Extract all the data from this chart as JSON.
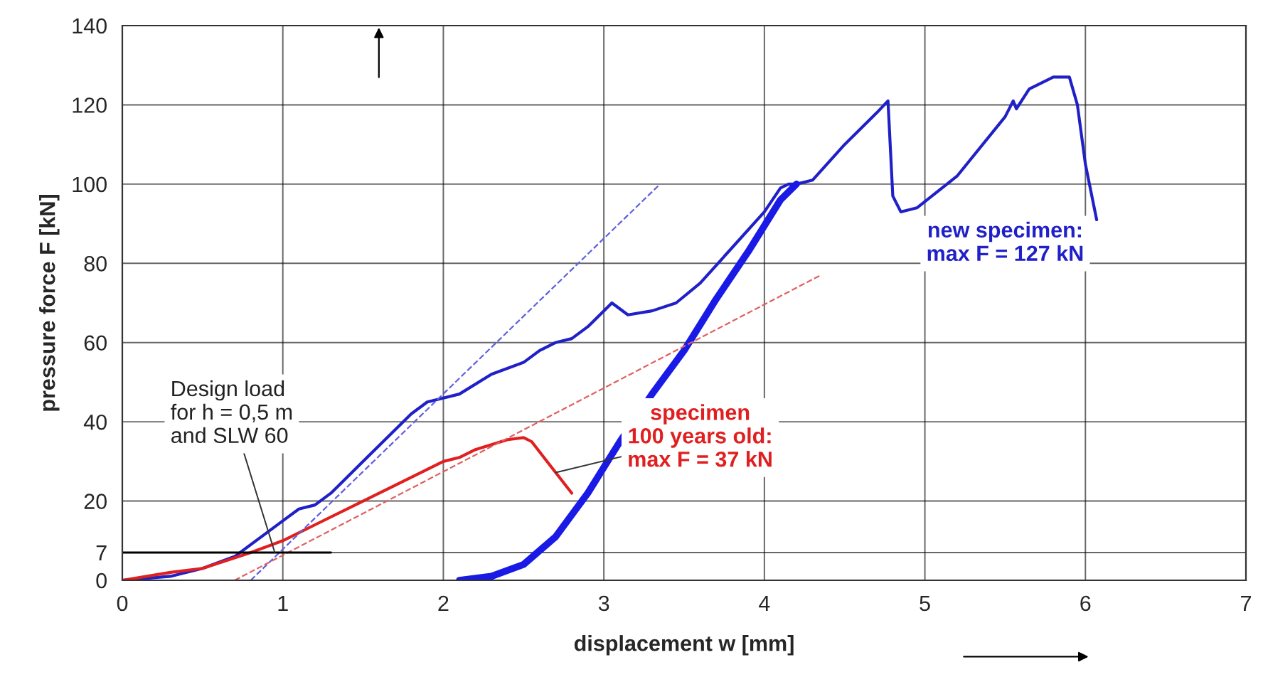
{
  "chart_data": {
    "type": "line",
    "xlabel": "displacement w [mm]",
    "ylabel": "pressure force F [kN]",
    "xlim": [
      0,
      7
    ],
    "xticks": [
      0,
      1,
      2,
      3,
      4,
      5,
      6,
      7
    ],
    "ylim": [
      0,
      140
    ],
    "yticks": [
      0,
      7,
      20,
      40,
      60,
      80,
      100,
      120,
      140
    ],
    "grid": true,
    "line_style": "solid",
    "series": [
      {
        "color": "#2020c8",
        "x": [
          0,
          0.3,
          0.5,
          0.7,
          0.9,
          1.0,
          1.1,
          1.2,
          1.3,
          1.5,
          1.7,
          1.8,
          1.9,
          2.0,
          2.1,
          2.3,
          2.5,
          2.6,
          2.7,
          2.8,
          2.9,
          3.0,
          3.05,
          3.15,
          3.3,
          3.45,
          3.6,
          3.8,
          4.0,
          4.1,
          4.15,
          4.2,
          4.3,
          4.5,
          4.7,
          4.77,
          4.8,
          4.85,
          4.95,
          5.2,
          5.5,
          5.55,
          5.57,
          5.65,
          5.8,
          5.9,
          5.95,
          6.0,
          6.07
        ],
        "values": [
          0,
          1,
          3,
          6,
          12,
          15,
          18,
          19,
          22,
          30,
          38,
          42,
          45,
          46,
          47,
          52,
          55,
          58,
          60,
          61,
          64,
          68,
          70,
          67,
          68,
          70,
          75,
          84,
          93,
          99,
          100,
          100,
          101,
          110,
          118,
          121,
          97,
          93,
          94,
          102,
          117,
          121,
          119,
          124,
          127,
          127,
          120,
          105,
          91
        ]
      },
      {
        "color": "#1a1ae6",
        "x": [
          2.1,
          2.3,
          2.5,
          2.7,
          2.9,
          3.1,
          3.3,
          3.5,
          3.7,
          3.9,
          4.1,
          4.2
        ],
        "values": [
          0,
          1,
          4,
          11,
          22,
          35,
          47,
          58,
          71,
          83,
          96,
          100
        ]
      },
      {
        "color": "#e02020",
        "x": [
          0,
          0.3,
          0.5,
          0.8,
          1.0,
          1.2,
          1.5,
          1.7,
          2.0,
          2.1,
          2.2,
          2.4,
          2.5,
          2.55,
          2.8
        ],
        "values": [
          0,
          2,
          3,
          7,
          10,
          14,
          20,
          24,
          30,
          31,
          33,
          35.5,
          36,
          35,
          22
        ]
      },
      {
        "color": "#6060e0",
        "line_style": "dashed",
        "x": [
          0.8,
          3.35
        ],
        "values": [
          0,
          100
        ]
      },
      {
        "color": "#e06060",
        "line_style": "dashed",
        "x": [
          0.7,
          4.35
        ],
        "values": [
          0,
          77
        ]
      },
      {
        "color": "#000000",
        "x": [
          0,
          1.3
        ],
        "values": [
          7,
          7
        ]
      }
    ],
    "annotations": [
      {
        "text": "Design load\nfor h = 0,5 m\nand SLW 60",
        "x": 0.95,
        "y": 7
      },
      {
        "text": "specimen\n100 years old:\nmax F = 37 kN",
        "x": 2.7,
        "y": 27.2
      },
      "new specimen:\nmax F = 127 kN"
    ]
  }
}
